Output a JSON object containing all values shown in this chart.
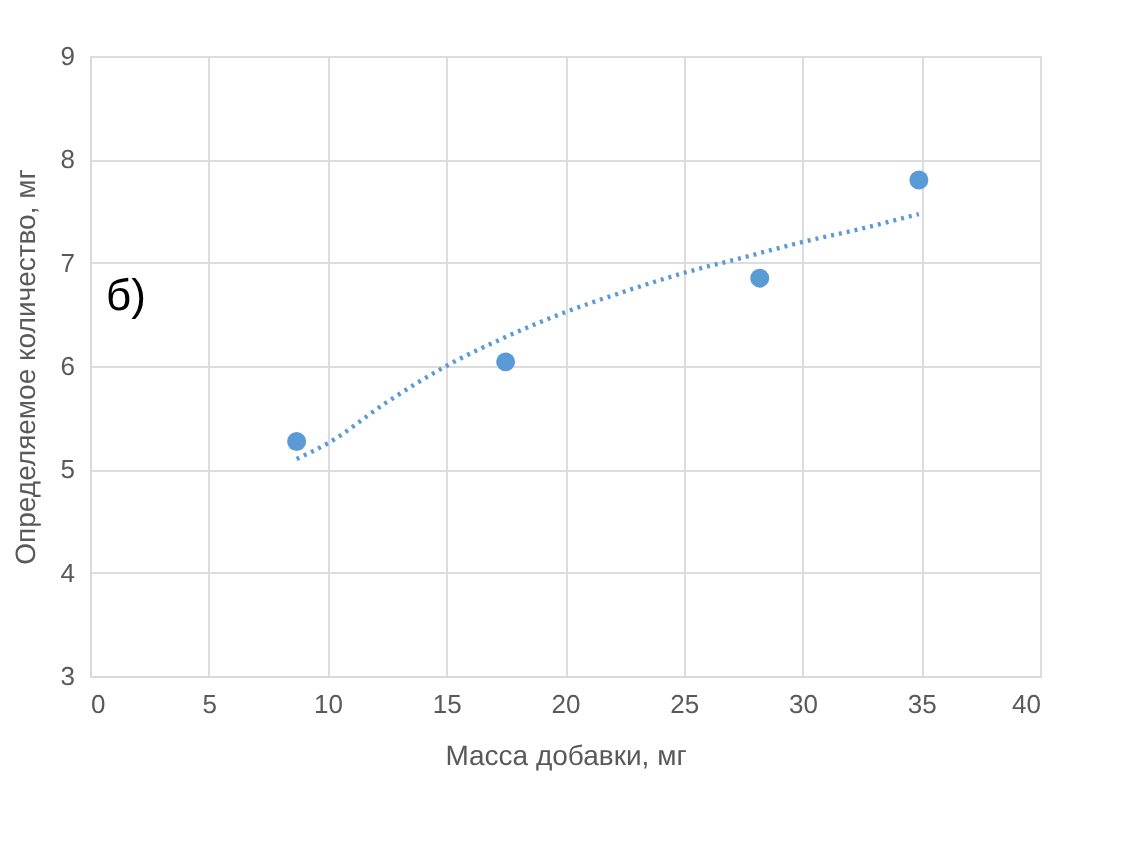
{
  "chart_data": {
    "type": "scatter",
    "xlabel": "Масса добавки, мг",
    "ylabel": "Определяемое количество, мг",
    "annotations": [
      "б)"
    ],
    "xlim": [
      0,
      40
    ],
    "xticks": [
      0,
      5,
      10,
      15,
      20,
      25,
      30,
      35,
      40
    ],
    "ylim": [
      3,
      9
    ],
    "yticks": [
      3,
      4,
      5,
      6,
      7,
      8,
      9
    ],
    "grid": true,
    "marker": "circle",
    "series": [
      {
        "color": "#5b9bd5",
        "x": [
          8.7,
          17.5,
          28.2,
          34.9
        ],
        "values": [
          5.27,
          6.04,
          6.85,
          7.8
        ]
      },
      {
        "type": "line",
        "marker": "none",
        "line_style": "dotted",
        "color": "#5b9bd5",
        "x": [
          8.7,
          10,
          12.5,
          15,
          17.5,
          20,
          22.5,
          25,
          27.5,
          30,
          32.5,
          34.9
        ],
        "values": [
          5.1,
          5.25,
          5.65,
          6.0,
          6.28,
          6.52,
          6.72,
          6.9,
          7.05,
          7.2,
          7.33,
          7.47
        ]
      }
    ]
  }
}
